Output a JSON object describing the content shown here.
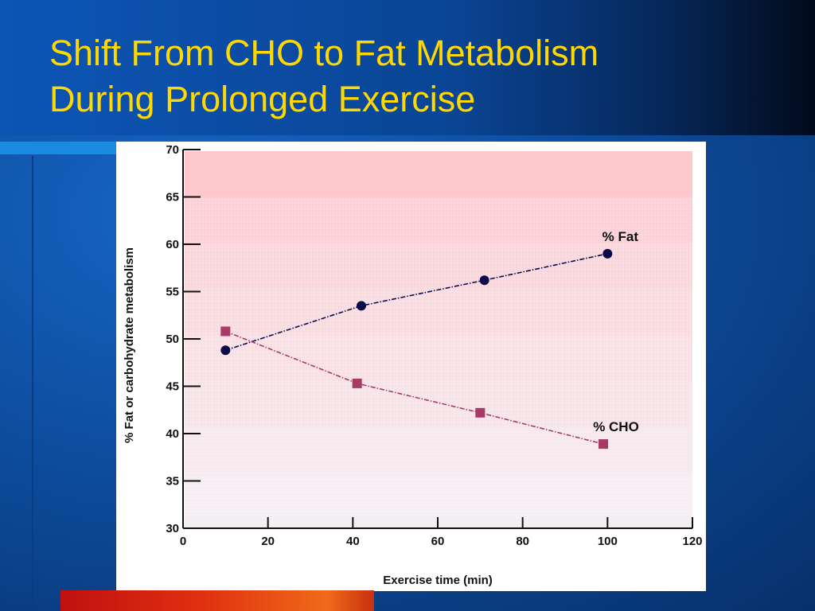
{
  "slide": {
    "title_line1": "Shift From CHO to Fat Metabolism",
    "title_line2": "During Prolonged Exercise",
    "colors": {
      "title": "#ffd800",
      "background": "#0d4d9e",
      "bottom_bar": "#e03010"
    }
  },
  "chart_data": {
    "type": "line",
    "xlabel": "Exercise time (min)",
    "ylabel": "% Fat or carbohydrate metabolism",
    "xlim": [
      0,
      120
    ],
    "ylim": [
      30,
      70
    ],
    "x_ticks": [
      0,
      20,
      40,
      60,
      80,
      100,
      120
    ],
    "y_ticks": [
      30,
      35,
      40,
      45,
      50,
      55,
      60,
      65,
      70
    ],
    "grid": false,
    "series": [
      {
        "name": "% Fat",
        "marker": "circle",
        "color": "#0b0b4a",
        "x": [
          10,
          42,
          71,
          100
        ],
        "y": [
          48.8,
          53.5,
          56.2,
          59.0
        ]
      },
      {
        "name": "% CHO",
        "marker": "square",
        "color": "#a83a66",
        "x": [
          10,
          41,
          70,
          99
        ],
        "y": [
          50.8,
          45.3,
          42.2,
          38.9
        ]
      }
    ]
  }
}
